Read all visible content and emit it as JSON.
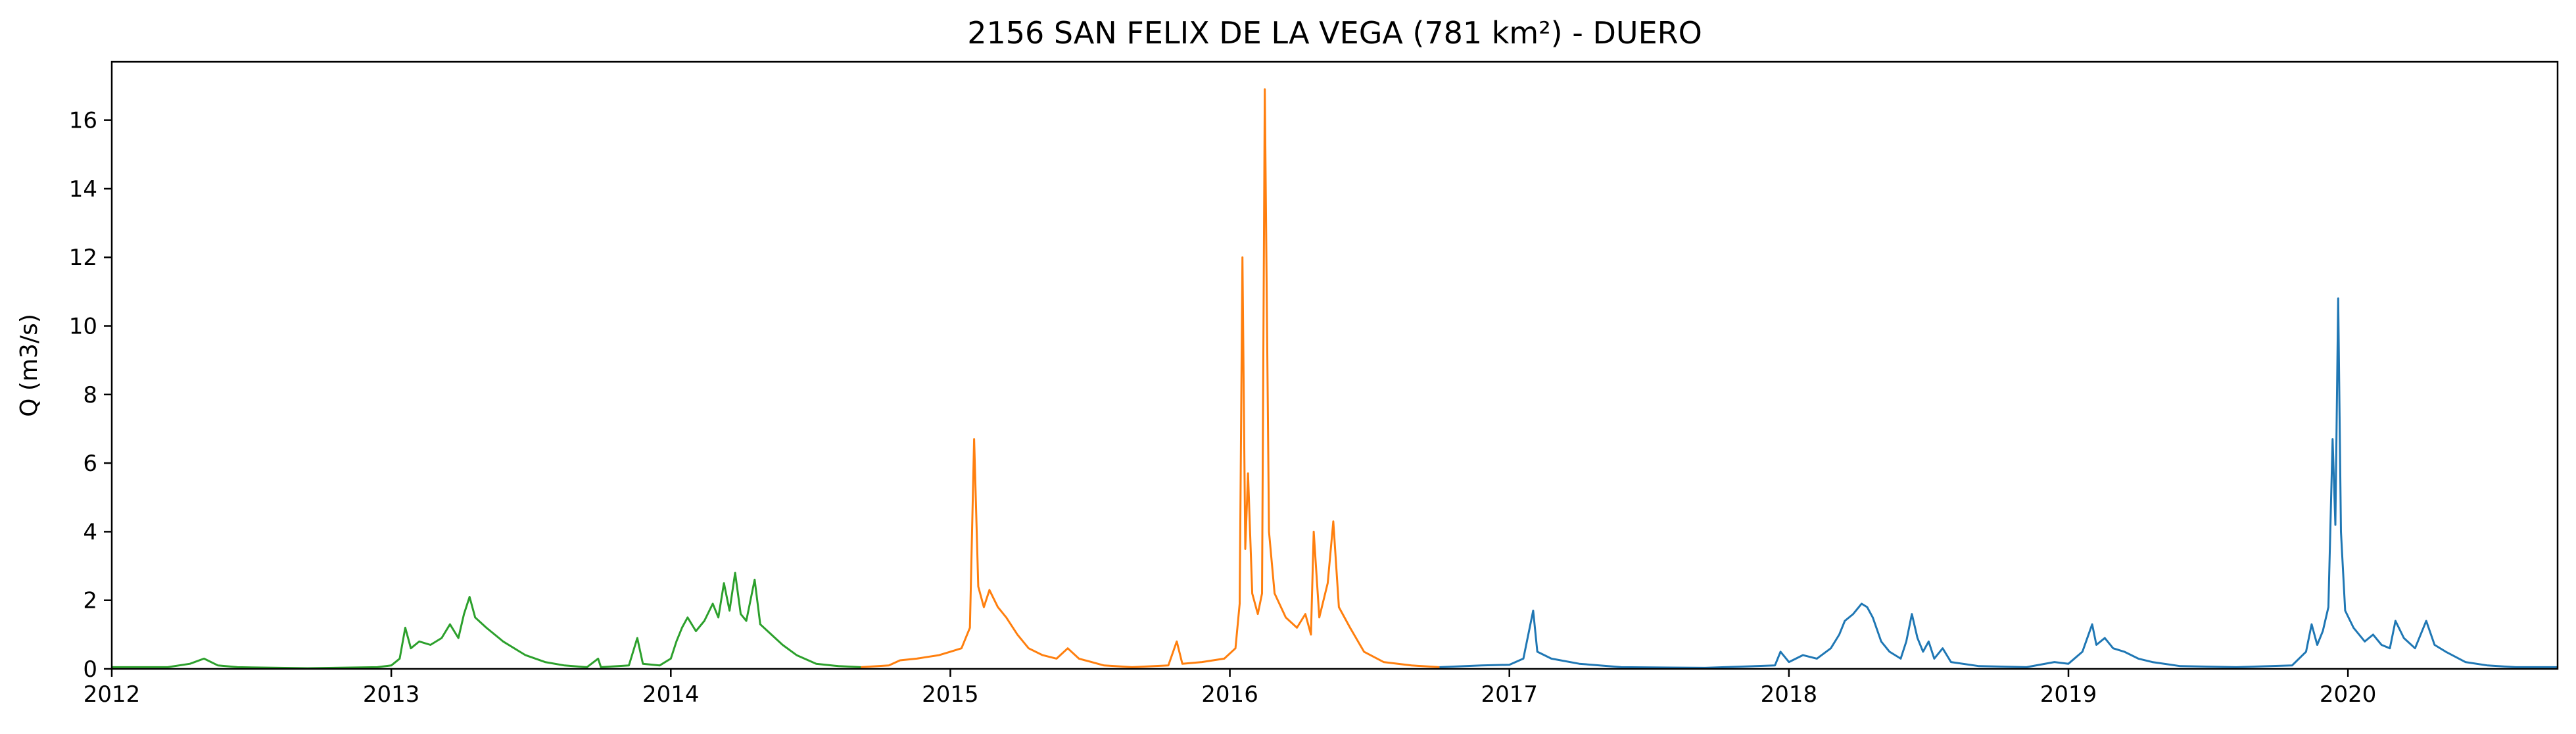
{
  "chart_data": {
    "type": "line",
    "title": "2156 SAN FELIX DE LA VEGA (781 km²) - DUERO",
    "xlabel": "",
    "ylabel": "Q (m3/s)",
    "xlim": [
      2012.0,
      2020.75
    ],
    "ylim": [
      0,
      17.7
    ],
    "x_ticks": [
      2012,
      2013,
      2014,
      2015,
      2016,
      2017,
      2018,
      2019,
      2020
    ],
    "x_tick_labels": [
      "2012",
      "2013",
      "2014",
      "2015",
      "2016",
      "2017",
      "2018",
      "2019",
      "2020"
    ],
    "y_ticks": [
      0,
      2,
      4,
      6,
      8,
      10,
      12,
      14,
      16
    ],
    "y_tick_labels": [
      "0",
      "2",
      "4",
      "6",
      "8",
      "10",
      "12",
      "14",
      "16"
    ],
    "grid": false,
    "legend": "none",
    "series": [
      {
        "color": "#2ca02c",
        "points": [
          [
            2012.0,
            0.05
          ],
          [
            2012.2,
            0.05
          ],
          [
            2012.28,
            0.15
          ],
          [
            2012.33,
            0.3
          ],
          [
            2012.38,
            0.1
          ],
          [
            2012.45,
            0.05
          ],
          [
            2012.7,
            0.02
          ],
          [
            2012.95,
            0.05
          ],
          [
            2013.0,
            0.1
          ],
          [
            2013.03,
            0.3
          ],
          [
            2013.05,
            1.2
          ],
          [
            2013.07,
            0.6
          ],
          [
            2013.1,
            0.8
          ],
          [
            2013.14,
            0.7
          ],
          [
            2013.18,
            0.9
          ],
          [
            2013.21,
            1.3
          ],
          [
            2013.24,
            0.9
          ],
          [
            2013.26,
            1.6
          ],
          [
            2013.28,
            2.1
          ],
          [
            2013.3,
            1.5
          ],
          [
            2013.34,
            1.2
          ],
          [
            2013.4,
            0.8
          ],
          [
            2013.48,
            0.4
          ],
          [
            2013.55,
            0.2
          ],
          [
            2013.62,
            0.1
          ],
          [
            2013.7,
            0.05
          ],
          [
            2013.74,
            0.3
          ],
          [
            2013.75,
            0.05
          ],
          [
            2013.85,
            0.1
          ],
          [
            2013.88,
            0.9
          ],
          [
            2013.9,
            0.15
          ],
          [
            2013.96,
            0.1
          ],
          [
            2014.0,
            0.3
          ],
          [
            2014.02,
            0.8
          ],
          [
            2014.04,
            1.2
          ],
          [
            2014.06,
            1.5
          ],
          [
            2014.09,
            1.1
          ],
          [
            2014.12,
            1.4
          ],
          [
            2014.15,
            1.9
          ],
          [
            2014.17,
            1.5
          ],
          [
            2014.19,
            2.5
          ],
          [
            2014.21,
            1.7
          ],
          [
            2014.23,
            2.8
          ],
          [
            2014.25,
            1.6
          ],
          [
            2014.27,
            1.4
          ],
          [
            2014.3,
            2.6
          ],
          [
            2014.32,
            1.3
          ],
          [
            2014.36,
            1.0
          ],
          [
            2014.4,
            0.7
          ],
          [
            2014.45,
            0.4
          ],
          [
            2014.52,
            0.15
          ],
          [
            2014.6,
            0.08
          ],
          [
            2014.68,
            0.05
          ]
        ]
      },
      {
        "color": "#ff7f0e",
        "points": [
          [
            2014.68,
            0.05
          ],
          [
            2014.78,
            0.1
          ],
          [
            2014.82,
            0.25
          ],
          [
            2014.88,
            0.3
          ],
          [
            2014.92,
            0.35
          ],
          [
            2014.96,
            0.4
          ],
          [
            2015.0,
            0.5
          ],
          [
            2015.04,
            0.6
          ],
          [
            2015.07,
            1.2
          ],
          [
            2015.085,
            6.7
          ],
          [
            2015.1,
            2.4
          ],
          [
            2015.12,
            1.8
          ],
          [
            2015.14,
            2.3
          ],
          [
            2015.17,
            1.8
          ],
          [
            2015.2,
            1.5
          ],
          [
            2015.24,
            1.0
          ],
          [
            2015.28,
            0.6
          ],
          [
            2015.33,
            0.4
          ],
          [
            2015.38,
            0.3
          ],
          [
            2015.42,
            0.6
          ],
          [
            2015.46,
            0.3
          ],
          [
            2015.55,
            0.1
          ],
          [
            2015.65,
            0.05
          ],
          [
            2015.78,
            0.1
          ],
          [
            2015.81,
            0.8
          ],
          [
            2015.83,
            0.15
          ],
          [
            2015.9,
            0.2
          ],
          [
            2015.98,
            0.3
          ],
          [
            2016.02,
            0.6
          ],
          [
            2016.035,
            1.9
          ],
          [
            2016.045,
            12.0
          ],
          [
            2016.055,
            3.5
          ],
          [
            2016.065,
            5.7
          ],
          [
            2016.08,
            2.2
          ],
          [
            2016.1,
            1.6
          ],
          [
            2016.115,
            2.2
          ],
          [
            2016.125,
            16.9
          ],
          [
            2016.14,
            4.0
          ],
          [
            2016.16,
            2.2
          ],
          [
            2016.2,
            1.5
          ],
          [
            2016.24,
            1.2
          ],
          [
            2016.27,
            1.6
          ],
          [
            2016.29,
            1.0
          ],
          [
            2016.3,
            4.0
          ],
          [
            2016.32,
            1.5
          ],
          [
            2016.35,
            2.5
          ],
          [
            2016.37,
            4.3
          ],
          [
            2016.39,
            1.8
          ],
          [
            2016.43,
            1.2
          ],
          [
            2016.48,
            0.5
          ],
          [
            2016.55,
            0.2
          ],
          [
            2016.65,
            0.1
          ],
          [
            2016.75,
            0.05
          ]
        ]
      },
      {
        "color": "#1f77b4",
        "points": [
          [
            2016.75,
            0.05
          ],
          [
            2016.9,
            0.1
          ],
          [
            2017.0,
            0.12
          ],
          [
            2017.05,
            0.3
          ],
          [
            2017.085,
            1.7
          ],
          [
            2017.1,
            0.5
          ],
          [
            2017.15,
            0.3
          ],
          [
            2017.25,
            0.15
          ],
          [
            2017.4,
            0.05
          ],
          [
            2017.7,
            0.03
          ],
          [
            2017.95,
            0.1
          ],
          [
            2017.97,
            0.5
          ],
          [
            2018.0,
            0.2
          ],
          [
            2018.05,
            0.4
          ],
          [
            2018.1,
            0.3
          ],
          [
            2018.15,
            0.6
          ],
          [
            2018.18,
            1.0
          ],
          [
            2018.2,
            1.4
          ],
          [
            2018.23,
            1.6
          ],
          [
            2018.26,
            1.9
          ],
          [
            2018.28,
            1.8
          ],
          [
            2018.3,
            1.5
          ],
          [
            2018.33,
            0.8
          ],
          [
            2018.36,
            0.5
          ],
          [
            2018.4,
            0.3
          ],
          [
            2018.42,
            0.8
          ],
          [
            2018.44,
            1.6
          ],
          [
            2018.46,
            0.9
          ],
          [
            2018.48,
            0.5
          ],
          [
            2018.5,
            0.8
          ],
          [
            2018.52,
            0.3
          ],
          [
            2018.55,
            0.6
          ],
          [
            2018.58,
            0.2
          ],
          [
            2018.68,
            0.08
          ],
          [
            2018.85,
            0.05
          ],
          [
            2018.95,
            0.2
          ],
          [
            2019.0,
            0.15
          ],
          [
            2019.05,
            0.5
          ],
          [
            2019.085,
            1.3
          ],
          [
            2019.1,
            0.7
          ],
          [
            2019.13,
            0.9
          ],
          [
            2019.16,
            0.6
          ],
          [
            2019.2,
            0.5
          ],
          [
            2019.25,
            0.3
          ],
          [
            2019.3,
            0.2
          ],
          [
            2019.4,
            0.08
          ],
          [
            2019.6,
            0.05
          ],
          [
            2019.8,
            0.1
          ],
          [
            2019.85,
            0.5
          ],
          [
            2019.87,
            1.3
          ],
          [
            2019.89,
            0.7
          ],
          [
            2019.91,
            1.1
          ],
          [
            2019.93,
            1.8
          ],
          [
            2019.945,
            6.7
          ],
          [
            2019.955,
            4.2
          ],
          [
            2019.965,
            10.8
          ],
          [
            2019.975,
            4.0
          ],
          [
            2019.99,
            1.7
          ],
          [
            2020.02,
            1.2
          ],
          [
            2020.06,
            0.8
          ],
          [
            2020.09,
            1.0
          ],
          [
            2020.12,
            0.7
          ],
          [
            2020.15,
            0.6
          ],
          [
            2020.17,
            1.4
          ],
          [
            2020.2,
            0.9
          ],
          [
            2020.24,
            0.6
          ],
          [
            2020.28,
            1.4
          ],
          [
            2020.31,
            0.7
          ],
          [
            2020.35,
            0.5
          ],
          [
            2020.42,
            0.2
          ],
          [
            2020.5,
            0.1
          ],
          [
            2020.6,
            0.05
          ],
          [
            2020.75,
            0.05
          ]
        ]
      }
    ]
  }
}
